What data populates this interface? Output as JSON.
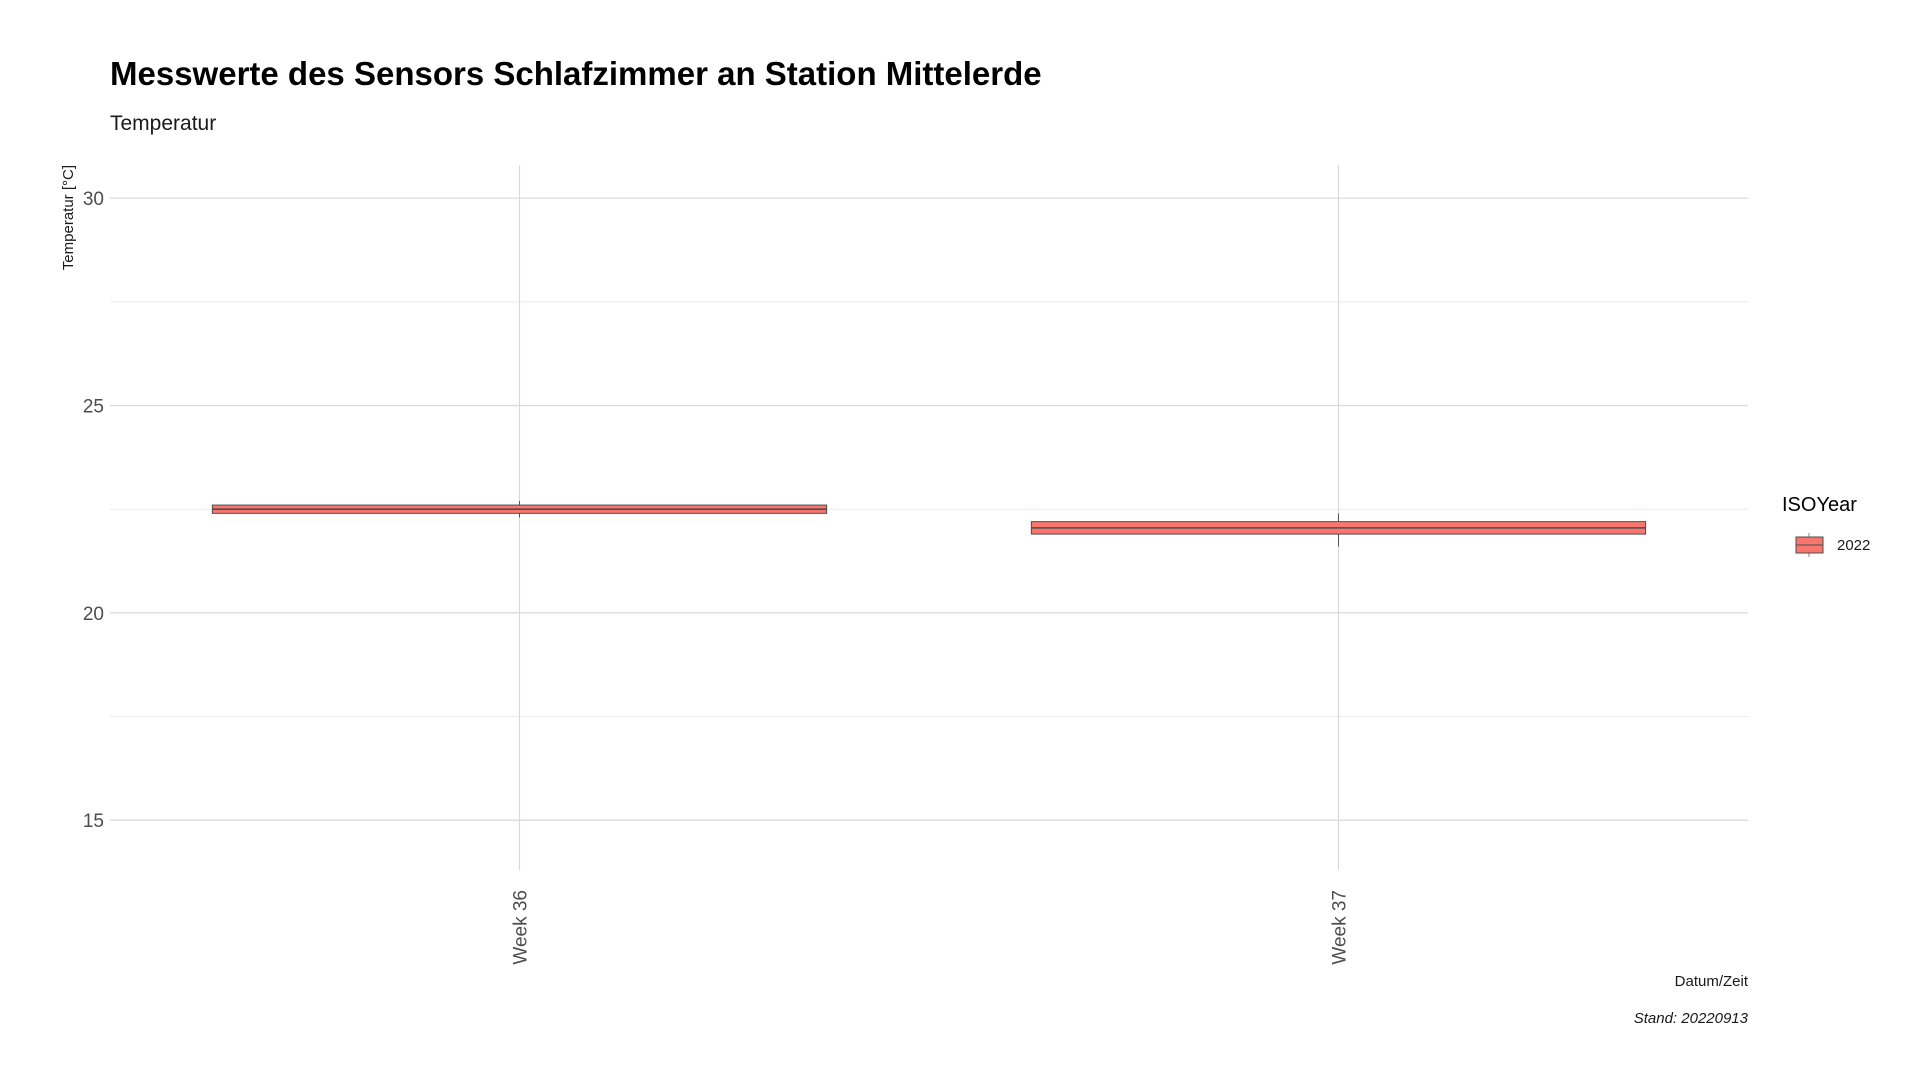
{
  "chart_data": {
    "type": "boxplot",
    "title": "Messwerte des Sensors Schlafzimmer an Station Mittelerde",
    "subtitle": "Temperatur",
    "xlabel": "Datum/Zeit",
    "ylabel": "Temperatur [°C]",
    "caption": "Stand: 20220913",
    "categories": [
      "Week 36",
      "Week 37"
    ],
    "ylim": [
      13.8,
      30.8
    ],
    "yticks": [
      15,
      20,
      25,
      30
    ],
    "grid": true,
    "legend": {
      "title": "ISOYear",
      "position": "right",
      "entries": [
        {
          "label": "2022",
          "color": "#F8766D"
        }
      ]
    },
    "series": [
      {
        "name": "2022",
        "color": "#F8766D",
        "boxes": [
          {
            "category": "Week 36",
            "min": 22.3,
            "q1": 22.4,
            "median": 22.5,
            "q3": 22.6,
            "max": 22.7
          },
          {
            "category": "Week 37",
            "min": 21.6,
            "q1": 21.9,
            "median": 22.05,
            "q3": 22.2,
            "max": 22.4
          }
        ]
      }
    ]
  }
}
